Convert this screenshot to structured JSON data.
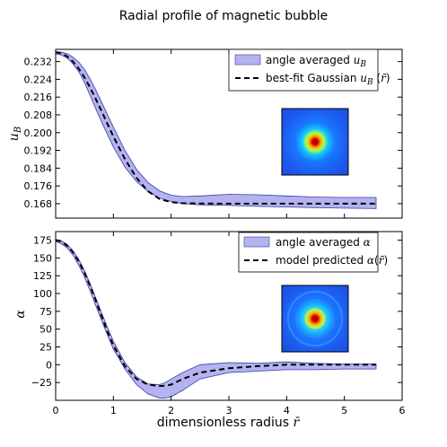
{
  "title": "Radial profile of magnetic bubble",
  "colors": {
    "band_fill": "#b3b3ef",
    "band_edge": "#3a3aa8",
    "fit_line": "#000000"
  },
  "chart_data": [
    {
      "type": "area",
      "ylabel": "u_B",
      "xlim": [
        0,
        6
      ],
      "ylim": [
        0.1615,
        0.2375
      ],
      "yticks": [
        "0.232",
        "0.224",
        "0.216",
        "0.208",
        "0.200",
        "0.192",
        "0.184",
        "0.176",
        "0.168"
      ],
      "ytick_values": [
        0.232,
        0.224,
        0.216,
        0.208,
        0.2,
        0.192,
        0.184,
        0.176,
        0.168
      ],
      "legend_position": "top-right",
      "legend": [
        "angle averaged u_B",
        "best-fit Gaussian u_B(r̄)"
      ],
      "series": [
        {
          "name": "angle averaged u_B",
          "kind": "band",
          "x": [
            0,
            0.1,
            0.2,
            0.3,
            0.4,
            0.5,
            0.6,
            0.7,
            0.8,
            0.9,
            1.0,
            1.2,
            1.4,
            1.6,
            1.8,
            2.0,
            2.2,
            2.5,
            3.0,
            3.5,
            4.0,
            4.5,
            5.0,
            5.55
          ],
          "low": [
            0.2355,
            0.235,
            0.2335,
            0.231,
            0.2275,
            0.2225,
            0.2165,
            0.2105,
            0.2045,
            0.199,
            0.1935,
            0.1845,
            0.178,
            0.1735,
            0.1705,
            0.169,
            0.168,
            0.1675,
            0.1672,
            0.1668,
            0.1665,
            0.1662,
            0.166,
            0.1658
          ],
          "high": [
            0.2365,
            0.2362,
            0.2355,
            0.234,
            0.2318,
            0.2285,
            0.224,
            0.219,
            0.2135,
            0.208,
            0.2025,
            0.192,
            0.1835,
            0.1775,
            0.1738,
            0.1718,
            0.1712,
            0.1715,
            0.1722,
            0.172,
            0.1715,
            0.171,
            0.1708,
            0.1708
          ]
        },
        {
          "name": "best-fit Gaussian u_B(r̄)",
          "kind": "dashed",
          "x": [
            0,
            0.1,
            0.2,
            0.3,
            0.4,
            0.5,
            0.6,
            0.7,
            0.8,
            0.9,
            1.0,
            1.2,
            1.4,
            1.6,
            1.8,
            2.0,
            2.2,
            2.5,
            3.0,
            3.5,
            4.0,
            4.5,
            5.0,
            5.55
          ],
          "y": [
            0.2362,
            0.2357,
            0.2343,
            0.232,
            0.2288,
            0.2248,
            0.2201,
            0.2149,
            0.2094,
            0.2038,
            0.1983,
            0.1881,
            0.1796,
            0.1736,
            0.1701,
            0.1687,
            0.1682,
            0.1681,
            0.168,
            0.168,
            0.168,
            0.168,
            0.168,
            0.168
          ]
        }
      ]
    },
    {
      "type": "area",
      "ylabel": "α",
      "xlabel": "dimensionless radius r̄",
      "xlim": [
        0,
        6
      ],
      "xticks": [
        "0",
        "1",
        "2",
        "3",
        "4",
        "5",
        "6"
      ],
      "xtick_values": [
        0,
        1,
        2,
        3,
        4,
        5,
        6
      ],
      "ylim": [
        -50,
        187
      ],
      "yticks": [
        "175",
        "150",
        "125",
        "100",
        "75",
        "50",
        "25",
        "0",
        "−25"
      ],
      "ytick_values": [
        175,
        150,
        125,
        100,
        75,
        50,
        25,
        0,
        -25
      ],
      "legend_position": "top-right",
      "legend": [
        "angle averaged α",
        "model predicted α(r̄)"
      ],
      "series": [
        {
          "name": "angle averaged α",
          "kind": "band",
          "x": [
            0,
            0.1,
            0.2,
            0.3,
            0.4,
            0.5,
            0.6,
            0.7,
            0.8,
            0.9,
            1.0,
            1.2,
            1.4,
            1.6,
            1.8,
            1.9,
            2.0,
            2.2,
            2.5,
            3.0,
            3.5,
            4.0,
            4.5,
            5.0,
            5.55
          ],
          "low": [
            173,
            170,
            164,
            154,
            140,
            123,
            103,
            82,
            61,
            41,
            22,
            -6,
            -28,
            -41,
            -47,
            -47,
            -45,
            -36,
            -20,
            -11,
            -9,
            -7,
            -7,
            -6,
            -6
          ],
          "high": [
            176,
            174,
            169,
            160,
            148,
            132,
            113,
            93,
            72,
            52,
            33,
            3,
            -17,
            -27,
            -28,
            -25,
            -20,
            -11,
            0,
            3,
            2,
            4,
            2,
            1,
            1
          ]
        },
        {
          "name": "model predicted α(r̄)",
          "kind": "dashed",
          "x": [
            0,
            0.1,
            0.2,
            0.3,
            0.4,
            0.5,
            0.6,
            0.7,
            0.8,
            0.9,
            1.0,
            1.2,
            1.4,
            1.6,
            1.8,
            1.9,
            2.0,
            2.2,
            2.5,
            3.0,
            3.5,
            4.0,
            4.5,
            5.0,
            5.55
          ],
          "y": [
            175,
            173,
            167,
            158,
            145,
            129,
            110,
            89,
            67,
            46,
            27,
            -2,
            -20,
            -28,
            -30,
            -29.5,
            -28,
            -20,
            -11,
            -5,
            -2,
            0,
            0,
            0,
            0
          ]
        }
      ]
    }
  ]
}
